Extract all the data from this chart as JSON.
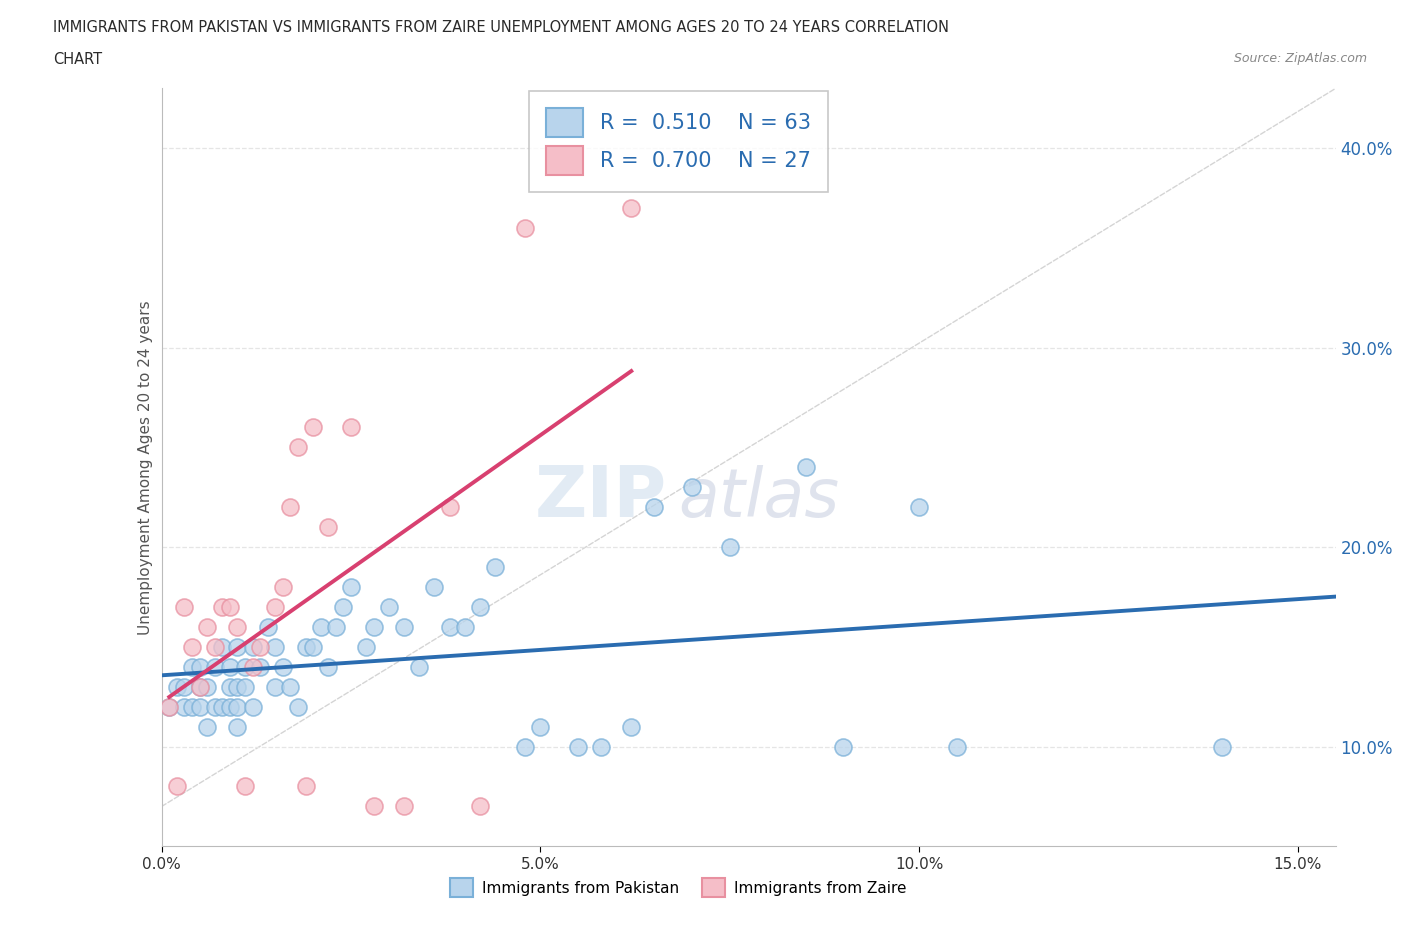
{
  "title_line1": "IMMIGRANTS FROM PAKISTAN VS IMMIGRANTS FROM ZAIRE UNEMPLOYMENT AMONG AGES 20 TO 24 YEARS CORRELATION",
  "title_line2": "CHART",
  "source_text": "Source: ZipAtlas.com",
  "ylabel": "Unemployment Among Ages 20 to 24 years",
  "xlim": [
    0.0,
    0.155
  ],
  "ylim": [
    0.05,
    0.43
  ],
  "yticks": [
    0.1,
    0.2,
    0.3,
    0.4
  ],
  "ytick_labels": [
    "10.0%",
    "20.0%",
    "30.0%",
    "40.0%"
  ],
  "xticks": [
    0.0,
    0.05,
    0.1,
    0.15
  ],
  "xtick_labels": [
    "0.0%",
    "5.0%",
    "10.0%",
    "15.0%"
  ],
  "pakistan_fill_color": "#b8d4ec",
  "pakistan_edge_color": "#7ab0d8",
  "zaire_fill_color": "#f5bec8",
  "zaire_edge_color": "#e890a0",
  "line_pakistan_color": "#2a6cb0",
  "line_zaire_color": "#d84070",
  "diagonal_color": "#d0d0d0",
  "R_pakistan": "0.510",
  "N_pakistan": "63",
  "R_zaire": "0.700",
  "N_zaire": "27",
  "legend_label_pakistan": "Immigrants from Pakistan",
  "legend_label_zaire": "Immigrants from Zaire",
  "pakistan_x": [
    0.001,
    0.002,
    0.003,
    0.003,
    0.004,
    0.004,
    0.005,
    0.005,
    0.005,
    0.006,
    0.006,
    0.007,
    0.007,
    0.008,
    0.008,
    0.009,
    0.009,
    0.009,
    0.01,
    0.01,
    0.01,
    0.01,
    0.011,
    0.011,
    0.012,
    0.012,
    0.013,
    0.014,
    0.015,
    0.015,
    0.016,
    0.017,
    0.018,
    0.019,
    0.02,
    0.021,
    0.022,
    0.023,
    0.024,
    0.025,
    0.027,
    0.028,
    0.03,
    0.032,
    0.034,
    0.036,
    0.038,
    0.04,
    0.042,
    0.044,
    0.048,
    0.05,
    0.055,
    0.058,
    0.062,
    0.065,
    0.07,
    0.075,
    0.085,
    0.09,
    0.1,
    0.105,
    0.14
  ],
  "pakistan_y": [
    0.12,
    0.13,
    0.12,
    0.13,
    0.12,
    0.14,
    0.12,
    0.13,
    0.14,
    0.11,
    0.13,
    0.12,
    0.14,
    0.12,
    0.15,
    0.12,
    0.13,
    0.14,
    0.11,
    0.12,
    0.13,
    0.15,
    0.13,
    0.14,
    0.12,
    0.15,
    0.14,
    0.16,
    0.13,
    0.15,
    0.14,
    0.13,
    0.12,
    0.15,
    0.15,
    0.16,
    0.14,
    0.16,
    0.17,
    0.18,
    0.15,
    0.16,
    0.17,
    0.16,
    0.14,
    0.18,
    0.16,
    0.16,
    0.17,
    0.19,
    0.1,
    0.11,
    0.1,
    0.1,
    0.11,
    0.22,
    0.23,
    0.2,
    0.24,
    0.1,
    0.22,
    0.1,
    0.1
  ],
  "zaire_x": [
    0.001,
    0.002,
    0.003,
    0.004,
    0.005,
    0.006,
    0.007,
    0.008,
    0.009,
    0.01,
    0.011,
    0.012,
    0.013,
    0.015,
    0.016,
    0.017,
    0.018,
    0.019,
    0.02,
    0.022,
    0.025,
    0.028,
    0.032,
    0.038,
    0.042,
    0.048,
    0.062
  ],
  "zaire_y": [
    0.12,
    0.08,
    0.17,
    0.15,
    0.13,
    0.16,
    0.15,
    0.17,
    0.17,
    0.16,
    0.08,
    0.14,
    0.15,
    0.17,
    0.18,
    0.22,
    0.25,
    0.08,
    0.26,
    0.21,
    0.26,
    0.07,
    0.07,
    0.22,
    0.07,
    0.36,
    0.37
  ],
  "background_color": "#ffffff",
  "grid_color": "#e5e5e5"
}
